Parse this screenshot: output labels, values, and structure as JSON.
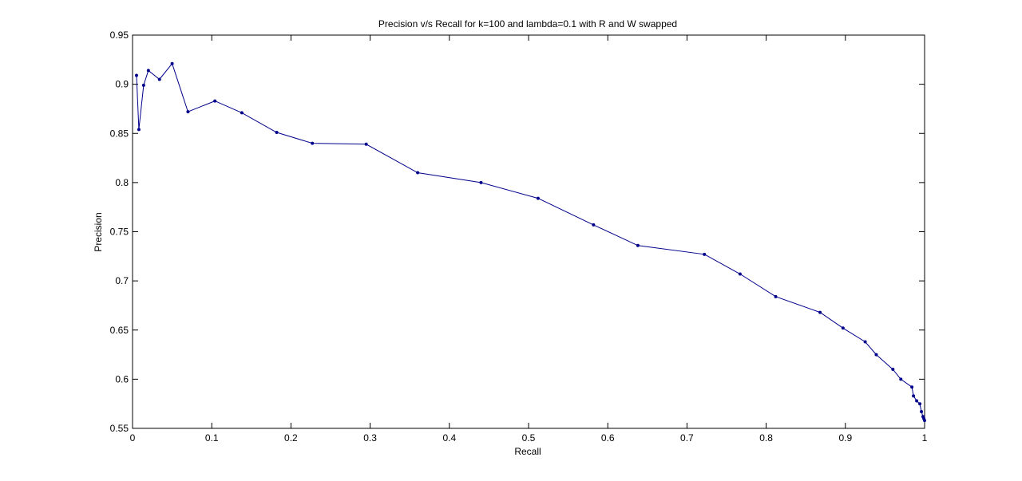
{
  "chart_data": {
    "type": "line",
    "title": "Precision v/s Recall for k=100 and lambda=0.1 with R and W swapped",
    "xlabel": "Recall",
    "ylabel": "Precision",
    "xlim": [
      0,
      1
    ],
    "ylim": [
      0.55,
      0.95
    ],
    "xticks": [
      "0",
      "0.1",
      "0.2",
      "0.3",
      "0.4",
      "0.5",
      "0.6",
      "0.7",
      "0.8",
      "0.9",
      "1"
    ],
    "yticks": [
      "0.55",
      "0.6",
      "0.65",
      "0.7",
      "0.75",
      "0.8",
      "0.85",
      "0.9",
      "0.95"
    ],
    "grid": false,
    "series_color": "#00008b",
    "series": [
      {
        "x": [
          0.005,
          0.008,
          0.014,
          0.02,
          0.034,
          0.05,
          0.07,
          0.104,
          0.138,
          0.182,
          0.227,
          0.295,
          0.36,
          0.44,
          0.512,
          0.582,
          0.638,
          0.722,
          0.767,
          0.812,
          0.868,
          0.897,
          0.925,
          0.939,
          0.96,
          0.97,
          0.984,
          0.986,
          0.99,
          0.994,
          0.996,
          0.998,
          0.999,
          1.0
        ],
        "y": [
          0.909,
          0.854,
          0.899,
          0.914,
          0.905,
          0.921,
          0.872,
          0.883,
          0.871,
          0.851,
          0.84,
          0.839,
          0.81,
          0.8,
          0.784,
          0.757,
          0.736,
          0.727,
          0.707,
          0.684,
          0.668,
          0.652,
          0.638,
          0.625,
          0.61,
          0.6,
          0.592,
          0.583,
          0.578,
          0.575,
          0.567,
          0.562,
          0.56,
          0.558
        ]
      }
    ]
  }
}
